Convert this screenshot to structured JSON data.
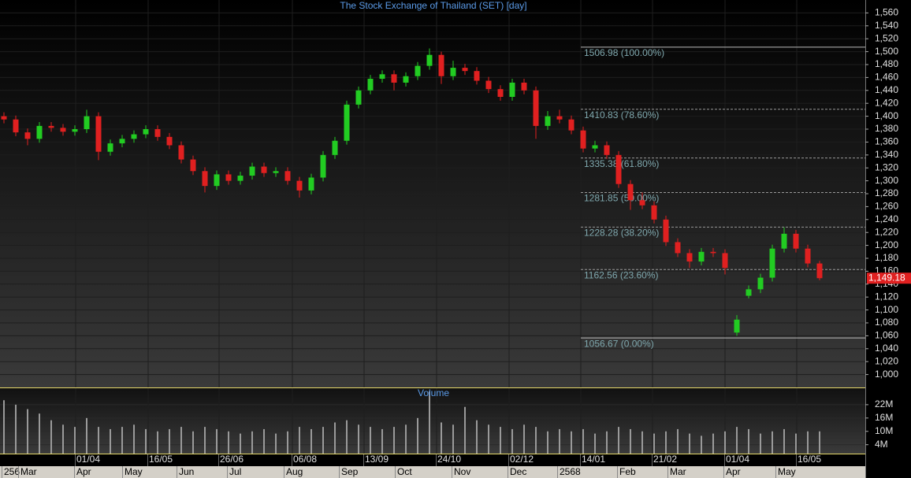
{
  "chart_data": {
    "type": "candlestick",
    "title": "The Stock Exchange of Thailand (SET) [day]",
    "open": [
      1400,
      1395,
      1375,
      1365,
      1385,
      1382,
      1376,
      1380,
      1400,
      1345,
      1358,
      1365,
      1372,
      1380,
      1368,
      1355,
      1333,
      1315,
      1292,
      1310,
      1300,
      1308,
      1322,
      1312,
      1315,
      1300,
      1285,
      1305,
      1340,
      1362,
      1418,
      1440,
      1458,
      1465,
      1452,
      1462,
      1478,
      1495,
      1462,
      1475,
      1470,
      1455,
      1442,
      1430,
      1452,
      1440,
      1385,
      1400,
      1395,
      1378,
      1350,
      1355,
      1340,
      1295,
      1270,
      1262,
      1240,
      1205,
      1188,
      1175,
      1190,
      1188,
      1065,
      1122,
      1132,
      1150,
      1195,
      1218,
      1195,
      1172
    ],
    "high": [
      1406,
      1401,
      1381,
      1391,
      1391,
      1388,
      1386,
      1410,
      1406,
      1364,
      1371,
      1378,
      1386,
      1386,
      1374,
      1361,
      1339,
      1321,
      1316,
      1316,
      1314,
      1328,
      1328,
      1321,
      1321,
      1306,
      1311,
      1346,
      1368,
      1424,
      1446,
      1464,
      1471,
      1471,
      1468,
      1484,
      1505,
      1500,
      1486,
      1481,
      1476,
      1461,
      1448,
      1458,
      1458,
      1446,
      1408,
      1410,
      1401,
      1384,
      1362,
      1361,
      1346,
      1301,
      1282,
      1268,
      1246,
      1211,
      1194,
      1196,
      1196,
      1194,
      1092,
      1138,
      1156,
      1201,
      1228,
      1224,
      1201,
      1176
    ],
    "low": [
      1389,
      1369,
      1355,
      1359,
      1376,
      1370,
      1370,
      1374,
      1332,
      1339,
      1352,
      1359,
      1366,
      1362,
      1349,
      1327,
      1309,
      1282,
      1286,
      1294,
      1294,
      1302,
      1306,
      1306,
      1294,
      1274,
      1279,
      1299,
      1334,
      1356,
      1412,
      1434,
      1452,
      1440,
      1446,
      1456,
      1472,
      1450,
      1456,
      1464,
      1449,
      1436,
      1424,
      1424,
      1434,
      1365,
      1379,
      1389,
      1372,
      1344,
      1344,
      1334,
      1289,
      1255,
      1256,
      1234,
      1199,
      1182,
      1165,
      1169,
      1182,
      1155,
      1060,
      1118,
      1126,
      1144,
      1189,
      1189,
      1166,
      1146
    ],
    "close": [
      1395,
      1375,
      1365,
      1385,
      1382,
      1376,
      1380,
      1400,
      1345,
      1358,
      1365,
      1372,
      1380,
      1368,
      1355,
      1333,
      1315,
      1292,
      1310,
      1300,
      1308,
      1322,
      1312,
      1315,
      1300,
      1285,
      1305,
      1340,
      1362,
      1418,
      1440,
      1458,
      1465,
      1452,
      1462,
      1478,
      1495,
      1462,
      1475,
      1470,
      1455,
      1442,
      1430,
      1452,
      1440,
      1385,
      1400,
      1395,
      1378,
      1350,
      1355,
      1340,
      1295,
      1270,
      1262,
      1240,
      1205,
      1188,
      1175,
      1190,
      1188,
      1165,
      1085,
      1132,
      1150,
      1195,
      1218,
      1195,
      1172,
      1149.18
    ],
    "up_color": "#22cc22",
    "down_color": "#e02020",
    "ylim": [
      980,
      1580
    ],
    "yticks": [
      {
        "value": 1000,
        "label": "1,000"
      },
      {
        "value": 1020,
        "label": "1,020"
      },
      {
        "value": 1040,
        "label": "1,040"
      },
      {
        "value": 1060,
        "label": "1,060"
      },
      {
        "value": 1080,
        "label": "1,080"
      },
      {
        "value": 1100,
        "label": "1,100"
      },
      {
        "value": 1120,
        "label": "1,120"
      },
      {
        "value": 1140,
        "label": "1,140"
      },
      {
        "value": 1160,
        "label": "1,160"
      },
      {
        "value": 1180,
        "label": "1,180"
      },
      {
        "value": 1200,
        "label": "1,200"
      },
      {
        "value": 1220,
        "label": "1,220"
      },
      {
        "value": 1240,
        "label": "1,240"
      },
      {
        "value": 1260,
        "label": "1,260"
      },
      {
        "value": 1280,
        "label": "1,280"
      },
      {
        "value": 1300,
        "label": "1,300"
      },
      {
        "value": 1320,
        "label": "1,320"
      },
      {
        "value": 1340,
        "label": "1,340"
      },
      {
        "value": 1360,
        "label": "1,360"
      },
      {
        "value": 1380,
        "label": "1,380"
      },
      {
        "value": 1400,
        "label": "1,400"
      },
      {
        "value": 1420,
        "label": "1,420"
      },
      {
        "value": 1440,
        "label": "1,440"
      },
      {
        "value": 1460,
        "label": "1,460"
      },
      {
        "value": 1480,
        "label": "1,480"
      },
      {
        "value": 1500,
        "label": "1,500"
      },
      {
        "value": 1520,
        "label": "1,520"
      },
      {
        "value": 1540,
        "label": "1,540"
      },
      {
        "value": 1560,
        "label": "1,560"
      }
    ],
    "grid": true,
    "last_price": {
      "value": 1149.18,
      "label": "1,149.18"
    },
    "fibonacci": [
      {
        "value": 1506.98,
        "label": "1506.98 (100.00%)"
      },
      {
        "value": 1410.83,
        "label": "1410.83 (78.60%)"
      },
      {
        "value": 1335.38,
        "label": "1335.38 (61.80%)"
      },
      {
        "value": 1281.85,
        "label": "1281.85 (50.00%)"
      },
      {
        "value": 1228.28,
        "label": "1228.28 (38.20%)"
      },
      {
        "value": 1162.56,
        "label": "1162.56 (23.60%)"
      },
      {
        "value": 1056.67,
        "label": "1056.67 (0.00%)"
      }
    ],
    "volume": {
      "title": "Volume",
      "values": [
        24,
        22,
        20,
        18,
        15,
        13,
        12,
        16,
        12,
        11,
        12,
        13,
        11,
        10,
        11,
        12,
        10,
        12,
        11,
        10,
        9,
        10,
        11,
        9,
        10,
        12,
        11,
        12,
        14,
        15,
        13,
        12,
        11,
        12,
        13,
        16,
        28,
        14,
        13,
        21,
        15,
        13,
        12,
        11,
        13,
        12,
        10,
        11,
        10,
        11,
        9,
        10,
        12,
        11,
        10,
        9,
        10,
        11,
        9,
        8,
        9,
        10,
        12,
        11,
        9,
        10,
        11,
        9,
        10,
        10
      ],
      "color": "#9a9a9a",
      "ylim": [
        0,
        29.4
      ],
      "yticks": [
        {
          "value": 4,
          "label": "4M"
        },
        {
          "value": 10,
          "label": "10M"
        },
        {
          "value": 16,
          "label": "16M"
        },
        {
          "value": 22,
          "label": "22M"
        }
      ]
    },
    "date_labels": [
      "01/04",
      "16/05",
      "26/06",
      "06/08",
      "13/09",
      "24/10",
      "02/12",
      "14/01",
      "21/02",
      "01/04",
      "16/05"
    ],
    "month_labels": [
      "256",
      "Mar",
      "Apr",
      "May",
      "Jun",
      "Jul",
      "Aug",
      "Sep",
      "Oct",
      "Nov",
      "Dec",
      "2568",
      "Feb",
      "Mar",
      "Apr",
      "May"
    ]
  }
}
